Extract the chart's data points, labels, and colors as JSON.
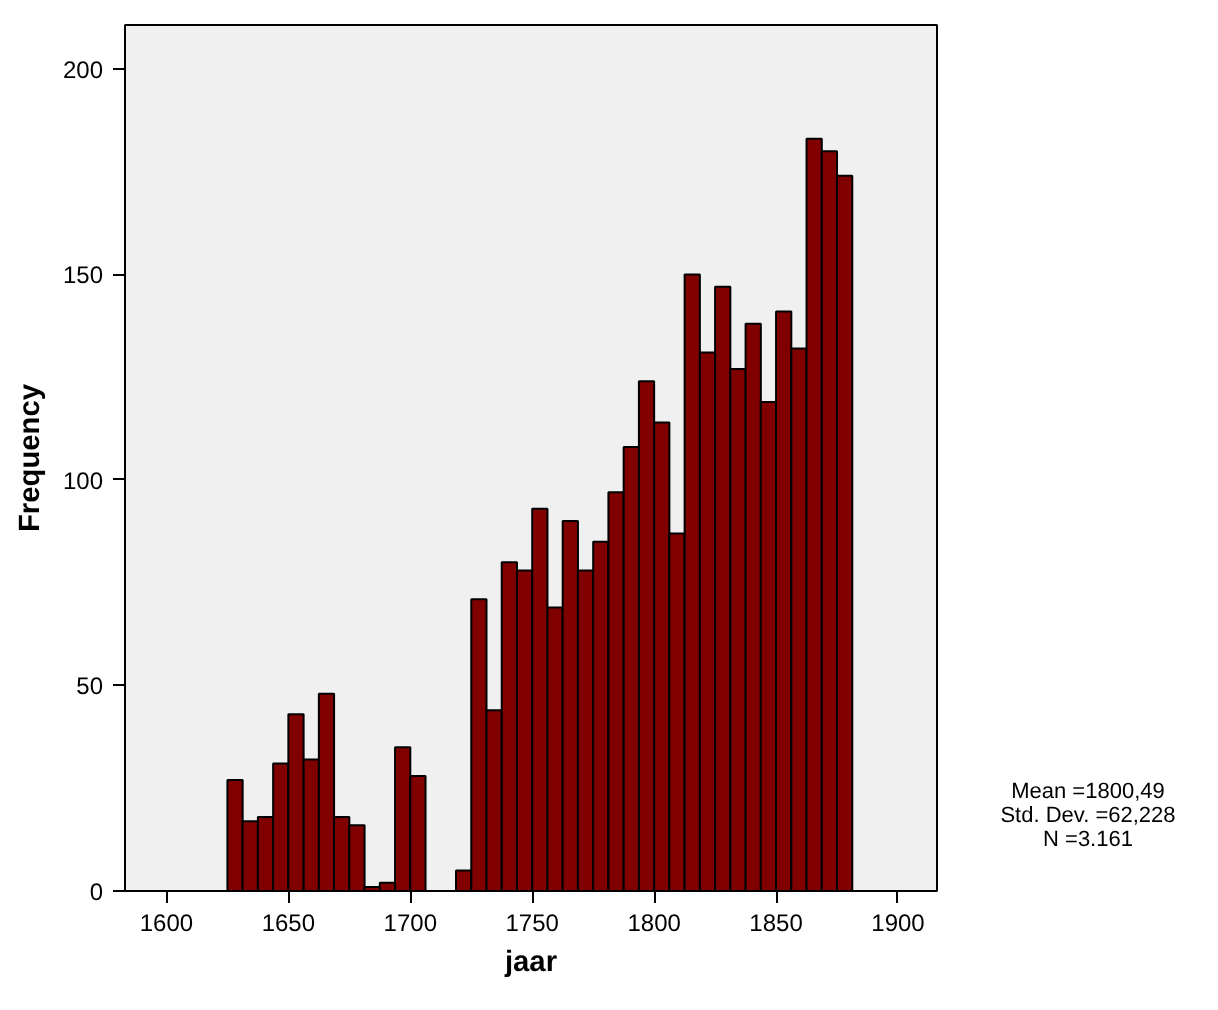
{
  "chart_data": {
    "type": "histogram",
    "xlabel": "jaar",
    "ylabel": "Frequency",
    "bins": [
      1625,
      1631.25,
      1637.5,
      1643.75,
      1650,
      1656.25,
      1662.5,
      1668.75,
      1675,
      1681.25,
      1687.5,
      1693.75,
      1700,
      1706.25,
      1712.5,
      1718.75,
      1725,
      1731.25,
      1737.5,
      1743.75,
      1750,
      1756.25,
      1762.5,
      1768.75,
      1775,
      1781.25,
      1787.5,
      1793.75,
      1800,
      1806.25,
      1812.5,
      1818.75,
      1825,
      1831.25,
      1837.5,
      1843.75,
      1850,
      1856.25,
      1862.5,
      1868.75,
      1875,
      1881.25
    ],
    "values": [
      27,
      17,
      18,
      31,
      43,
      32,
      48,
      18,
      16,
      1,
      2,
      35,
      28,
      0,
      0,
      5,
      71,
      44,
      80,
      78,
      93,
      69,
      90,
      78,
      85,
      97,
      108,
      124,
      114,
      87,
      150,
      131,
      147,
      127,
      138,
      119,
      141,
      132,
      183,
      180,
      174
    ],
    "color": "#800000",
    "xlim": [
      1583,
      1916
    ],
    "ylim": [
      0,
      210.7
    ],
    "xticks": [
      1600,
      1650,
      1700,
      1750,
      1800,
      1850,
      1900
    ],
    "yticks": [
      0,
      50,
      100,
      150,
      200
    ],
    "grid": false,
    "annotations": [
      "Mean =1800,49",
      "Std. Dev. =62,228",
      "N =3.161"
    ]
  }
}
